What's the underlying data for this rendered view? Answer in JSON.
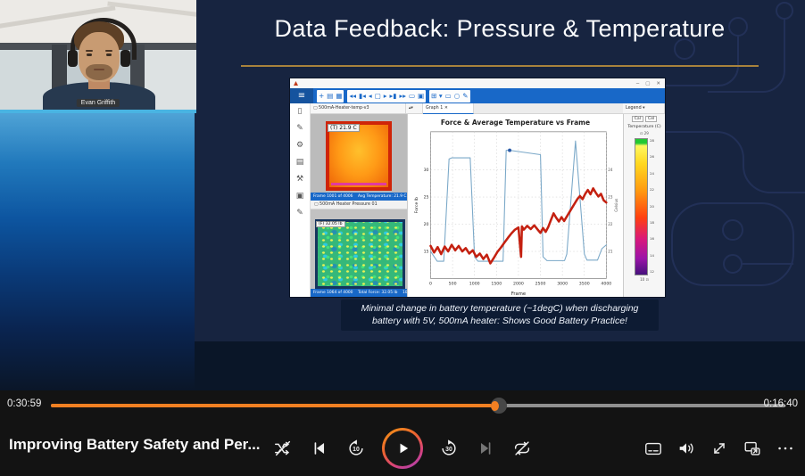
{
  "webcam": {
    "name_tag": "Evan Griffith",
    "bar_color": "#49b4e2"
  },
  "slide": {
    "title": "Data Feedback: Pressure & Temperature",
    "caption_line1": "Minimal change in battery temperature (~1degC) when discharging",
    "caption_line2": "battery with 5V, 500mA heater: Shows Good Battery Practice!"
  },
  "app_window": {
    "window_controls": [
      "─",
      "▢",
      "✕"
    ],
    "menu_icon": "≡",
    "toolbar_groups": [
      [
        "+",
        "▤",
        "▦"
      ],
      [
        "◂◂",
        "▮◂",
        "◂",
        "▢",
        "▸",
        "▸▮",
        "▸▸",
        "▭",
        "▣"
      ],
      [
        "⊞ ▾",
        "▭",
        "○",
        "✎"
      ]
    ],
    "sidebar_icons": [
      "▯",
      "✎",
      "⚙",
      "▤",
      "⚒",
      "▣",
      "✎"
    ],
    "file_tab": "▢ 500mA-Heater-temp-v3",
    "file_tab_spin": "▴▾",
    "graph_tab": "Graph 1  ✕",
    "legend_tab": "Legend ▾",
    "pressure_tab": "▢ 500mA Heater Pressure 01",
    "thermal_label": "(T) 21.9 C",
    "thermal_status": "Frame 1001 of 4006    Avg Temperature: 21.9 C    100%",
    "pressure_label": "(F) 32.05 lb",
    "pressure_status": "Frame 1064 of 4000    Total Force: 32.05 lb    100%",
    "legend_buttons": [
      "Cal",
      "Cel"
    ],
    "legend_title": "Temperature (C)",
    "legend_values": [
      "28",
      "26",
      "24",
      "22",
      "20",
      "18",
      "16",
      "14",
      "12"
    ],
    "legend_spin_top": "⊡ 29",
    "legend_spin_bottom": "10 ⊡"
  },
  "chart_data": {
    "type": "line",
    "title": "Force & Average Temperature vs Frame",
    "xlabel": "Frame",
    "ylabel": "Force lb",
    "y2label": "Celsius",
    "xlim": [
      0,
      4000
    ],
    "ylim": [
      10,
      37
    ],
    "xticks": [
      0,
      500,
      1000,
      1500,
      2000,
      2500,
      3000,
      3500,
      4000
    ],
    "yticks": [
      15,
      20,
      25,
      30
    ],
    "y2tick_labels": [
      "21",
      "22",
      "23",
      "24"
    ],
    "grid": true,
    "legend_position": "none",
    "series": [
      {
        "name": "Force (lb)",
        "color": "#7aa8c8",
        "width": 1.1,
        "x": [
          0,
          150,
          300,
          420,
          480,
          900,
          1000,
          1080,
          1650,
          1720,
          1800,
          2500,
          2560,
          2650,
          3050,
          3100,
          3300,
          3500,
          3560,
          3800,
          3900,
          4000
        ],
        "y": [
          15,
          13.2,
          13.2,
          32,
          32.2,
          32.2,
          14,
          13.2,
          13.2,
          33.6,
          33.6,
          32.8,
          14,
          13.3,
          13.3,
          14.5,
          35.3,
          14.5,
          13.4,
          13.4,
          15.5,
          16.2
        ]
      },
      {
        "name": "Avg Temperature (C)",
        "color": "#c42010",
        "width": 2.6,
        "x": [
          0,
          80,
          160,
          240,
          320,
          400,
          480,
          560,
          640,
          720,
          800,
          880,
          960,
          1040,
          1120,
          1200,
          1280,
          1360,
          1440,
          1520,
          1600,
          1680,
          1760,
          1840,
          1920,
          2000,
          2060,
          2080,
          2120,
          2200,
          2280,
          2360,
          2440,
          2500,
          2560,
          2620,
          2680,
          2740,
          2800,
          2860,
          2920,
          2980,
          3040,
          3100,
          3160,
          3220,
          3280,
          3340,
          3400,
          3460,
          3520,
          3580,
          3640,
          3700,
          3760,
          3820,
          3880,
          3940,
          4000
        ],
        "y": [
          16.0,
          14.8,
          15.8,
          14.5,
          15.9,
          15.0,
          16.2,
          15.2,
          16.0,
          15.0,
          15.6,
          14.6,
          15.2,
          14.0,
          14.6,
          13.6,
          14.4,
          12.8,
          13.8,
          14.9,
          15.7,
          16.6,
          17.5,
          18.3,
          19.0,
          19.4,
          14.0,
          19.6,
          19.0,
          19.7,
          19.1,
          19.8,
          19.0,
          18.4,
          19.3,
          18.6,
          19.5,
          20.8,
          22.0,
          21.2,
          20.5,
          21.3,
          20.6,
          21.4,
          22.2,
          23.0,
          23.8,
          24.6,
          25.2,
          24.6,
          25.6,
          26.3,
          25.5,
          26.6,
          25.8,
          25.1,
          25.6,
          24.4,
          24.0
        ]
      }
    ],
    "marker": {
      "x": 1800,
      "y": 33.6
    }
  },
  "player": {
    "title": "Improving Battery Safety and Per...",
    "current_time": "0:30:59",
    "remaining_time": "0:16:40",
    "progress_percent": 61,
    "accent_color": "#f28022",
    "skip_back_label": "10",
    "skip_forward_label": "30"
  }
}
